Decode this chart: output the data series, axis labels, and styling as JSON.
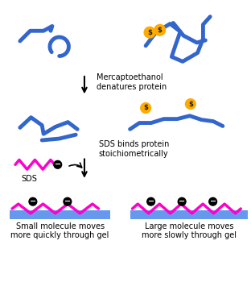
{
  "figsize": [
    3.12,
    3.5
  ],
  "dpi": 100,
  "bg_color": "#ffffff",
  "blue": "#3366cc",
  "magenta": "#ff00cc",
  "gel_blue": "#6699ee",
  "coin_gold": "#ffaa00",
  "text_black": "#000000",
  "label_merc": "Mercaptoethanol\ndenatures protein",
  "label_sds_bind": "SDS binds protein\nstoichiometrically",
  "label_sds": "SDS",
  "label_small": "Small molecule moves\nmore quickly through gel",
  "label_large": "Large molecule moves\nmore slowly through gel",
  "font_size": 7.0
}
